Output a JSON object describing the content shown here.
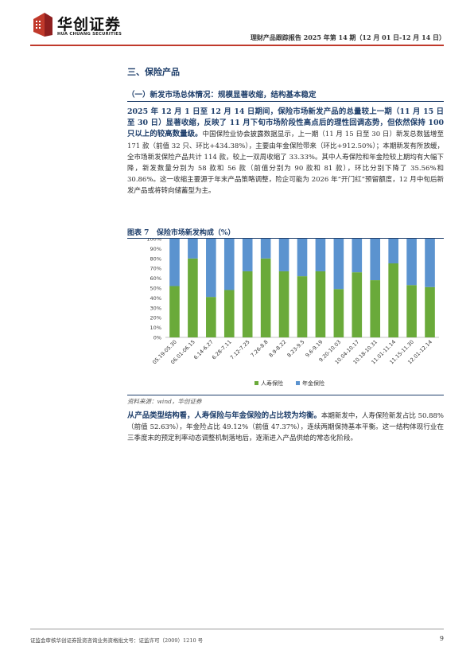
{
  "header": {
    "logo_cn": "华创证券",
    "logo_en": "HUA CHUANG SECURITIES",
    "report_title": "理财产品跟踪报告 2025 年第 14 期（12 月 01 日-12 月 14 日）",
    "accent_color": "#c0392b"
  },
  "section": {
    "title": "三、保险产品",
    "subtitle": "（一）新发市场总体情况：规模显著收缩，结构基本稳定"
  },
  "para1": {
    "bold": "2025 年 12 月 1 日至 12 月 14 日期间，保险市场新发产品的总量较上一期（11 月 15 日至 30 日）显著收缩，反映了 11 月下旬市场阶段性高点后的理性回调态势，但依然保持 100 只以上的较高数量级。",
    "body": "中国保险业协会披露数据显示，上一期（11 月 15 日至 30 日）新发总数猛增至 171 款（前值 32 只、环比+434.38%），主要由年金保险带来（环比+912.50%）；本期新发有所放缓，全市场新发保险产品共计 114 款，较上一双周收缩了 33.33%。其中人寿保险和年金险较上期均有大幅下降，新发数量分别为 58 款和 56 款（前值分别为 90 款和 81 款），环比分别下降了 35.56%和 30.86%。这一收缩主要源于年末产品策略调整，险企可能为 2026 年“开门红”预留额度，12 月中旬后新发产品或将转向储蓄型为主。"
  },
  "figure": {
    "label": "图表 7",
    "title": "保险市场新发构成（%）",
    "source": "资料来源：wind，华创证券"
  },
  "chart_data": {
    "type": "bar",
    "stacked": true,
    "categories": [
      "05.19-05.30",
      "06.01-06.15",
      "6.14-6.27",
      "6.28-7.11",
      "7.12-7.25",
      "7.26-8.8",
      "8.9-8.22",
      "8.23-9.5",
      "9.6-9.19",
      "9.20-10.03",
      "10.04-10.17",
      "10.18-10.31",
      "11.01-11.14",
      "11.15-11.30",
      "12.01-12.14"
    ],
    "series": [
      {
        "name": "人寿保险",
        "color": "#6aaa3a",
        "values": [
          52,
          80,
          41,
          48,
          67,
          80,
          67,
          62,
          67,
          49,
          66,
          58,
          75,
          53,
          51
        ]
      },
      {
        "name": "年金保险",
        "color": "#5b93cf",
        "values": [
          48,
          20,
          59,
          52,
          33,
          20,
          33,
          38,
          33,
          51,
          34,
          42,
          25,
          47,
          49
        ]
      }
    ],
    "yticks": [
      "0%",
      "10%",
      "20%",
      "30%",
      "40%",
      "50%",
      "60%",
      "70%",
      "80%",
      "90%",
      "100%"
    ],
    "ylim": [
      0,
      100
    ],
    "legend": "bottom"
  },
  "para2": {
    "bold": "从产品类型结构看，人寿保险与年金保险的占比较为均衡。",
    "body": "本期新发中，人寿保险新发占比 50.88%（前值 52.63%），年金险占比 49.12%（前值 47.37%），连续两期保持基本平衡。这一结构体现行业在三季度末的预定利率动态调整机制落地后，逐渐进入产品供给的常态化阶段。"
  },
  "footer": {
    "text": "证监会审核华创证券投资咨询业务资格批文号：证监许可（2009）1210 号",
    "page": "9"
  }
}
